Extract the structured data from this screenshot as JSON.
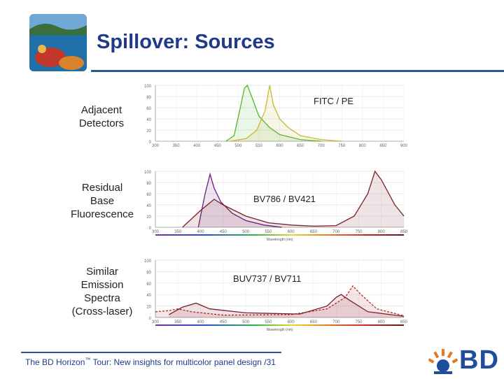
{
  "slide": {
    "title": "Spillover: Sources",
    "thumbnail_icon": "reef-photo-icon"
  },
  "rows": [
    {
      "label_lines": [
        "Adjacent",
        "Detectors"
      ],
      "chart_label": "FITC / PE"
    },
    {
      "label_lines": [
        "Residual",
        "Base",
        "Fluorescence"
      ],
      "chart_label": "BV786 / BV421"
    },
    {
      "label_lines": [
        "Similar",
        "Emission",
        "Spectra",
        "(Cross-laser)"
      ],
      "chart_label": "BUV737 / BV711"
    }
  ],
  "footer": {
    "prefix": "The BD Horizon",
    "tm": "™",
    "suffix": " Tour: New insights for multicolor panel design /31"
  },
  "logo": {
    "text": "BD"
  },
  "colors": {
    "title": "#1f3a8a",
    "rule": "#2f5597",
    "logo": "#1f4e9c",
    "logo_orange": "#e8771e"
  },
  "chart_data": [
    {
      "type": "line",
      "title": "FITC / PE",
      "x": [
        300,
        350,
        400,
        450,
        500,
        550,
        600,
        650,
        700,
        750,
        800,
        850,
        900
      ],
      "xlim": [
        300,
        900
      ],
      "ylim": [
        0,
        100
      ],
      "yticks": [
        0,
        20,
        40,
        60,
        80,
        100
      ],
      "series": [
        {
          "name": "FITC",
          "color": "#55b531",
          "points": [
            [
              470,
              0
            ],
            [
              490,
              10
            ],
            [
              505,
              60
            ],
            [
              515,
              95
            ],
            [
              522,
              100
            ],
            [
              535,
              75
            ],
            [
              550,
              45
            ],
            [
              575,
              25
            ],
            [
              600,
              12
            ],
            [
              650,
              3
            ],
            [
              700,
              0
            ]
          ]
        },
        {
          "name": "PE",
          "color": "#c8b92e",
          "points": [
            [
              480,
              0
            ],
            [
              520,
              5
            ],
            [
              545,
              20
            ],
            [
              565,
              55
            ],
            [
              576,
              100
            ],
            [
              585,
              65
            ],
            [
              600,
              40
            ],
            [
              620,
              25
            ],
            [
              650,
              10
            ],
            [
              700,
              3
            ],
            [
              750,
              0
            ]
          ]
        }
      ]
    },
    {
      "type": "line",
      "title": "BV786 / BV421",
      "x": [
        300,
        350,
        400,
        450,
        500,
        550,
        600,
        650,
        700,
        750,
        800,
        850
      ],
      "xlim": [
        300,
        850
      ],
      "ylim": [
        0,
        100
      ],
      "yticks": [
        0,
        20,
        40,
        60,
        80,
        100
      ],
      "xlabel": "Wavelength (nm)",
      "series": [
        {
          "name": "BV421",
          "color": "#6a1e7c",
          "points": [
            [
              395,
              0
            ],
            [
              410,
              60
            ],
            [
              421,
              95
            ],
            [
              430,
              70
            ],
            [
              445,
              45
            ],
            [
              470,
              25
            ],
            [
              500,
              12
            ],
            [
              540,
              4
            ],
            [
              580,
              0
            ]
          ]
        },
        {
          "name": "BV786",
          "color": "#7a1f2b",
          "points": [
            [
              360,
              0
            ],
            [
              400,
              30
            ],
            [
              430,
              50
            ],
            [
              450,
              40
            ],
            [
              500,
              20
            ],
            [
              550,
              8
            ],
            [
              600,
              4
            ],
            [
              650,
              2
            ],
            [
              700,
              3
            ],
            [
              740,
              20
            ],
            [
              770,
              60
            ],
            [
              786,
              100
            ],
            [
              800,
              85
            ],
            [
              830,
              40
            ],
            [
              850,
              20
            ]
          ]
        }
      ]
    },
    {
      "type": "line",
      "title": "BUV737 / BV711",
      "x": [
        300,
        350,
        400,
        450,
        500,
        550,
        600,
        650,
        700,
        750,
        800,
        850
      ],
      "xlim": [
        300,
        850
      ],
      "ylim": [
        0,
        100
      ],
      "yticks": [
        0,
        20,
        40,
        60,
        80,
        100
      ],
      "xlabel": "Wavelength (nm)",
      "series": [
        {
          "name": "BUV737",
          "color": "#b5262e",
          "points": [
            [
              300,
              10
            ],
            [
              330,
              12
            ],
            [
              350,
              15
            ],
            [
              380,
              10
            ],
            [
              450,
              4
            ],
            [
              600,
              5
            ],
            [
              680,
              15
            ],
            [
              720,
              35
            ],
            [
              737,
              55
            ],
            [
              755,
              40
            ],
            [
              790,
              15
            ],
            [
              850,
              3
            ]
          ]
        },
        {
          "name": "BV711",
          "color": "#7a1f2b",
          "points": [
            [
              330,
              5
            ],
            [
              360,
              18
            ],
            [
              390,
              25
            ],
            [
              420,
              15
            ],
            [
              500,
              8
            ],
            [
              620,
              6
            ],
            [
              680,
              20
            ],
            [
              700,
              35
            ],
            [
              711,
              40
            ],
            [
              730,
              30
            ],
            [
              770,
              10
            ],
            [
              850,
              2
            ]
          ]
        }
      ]
    }
  ]
}
